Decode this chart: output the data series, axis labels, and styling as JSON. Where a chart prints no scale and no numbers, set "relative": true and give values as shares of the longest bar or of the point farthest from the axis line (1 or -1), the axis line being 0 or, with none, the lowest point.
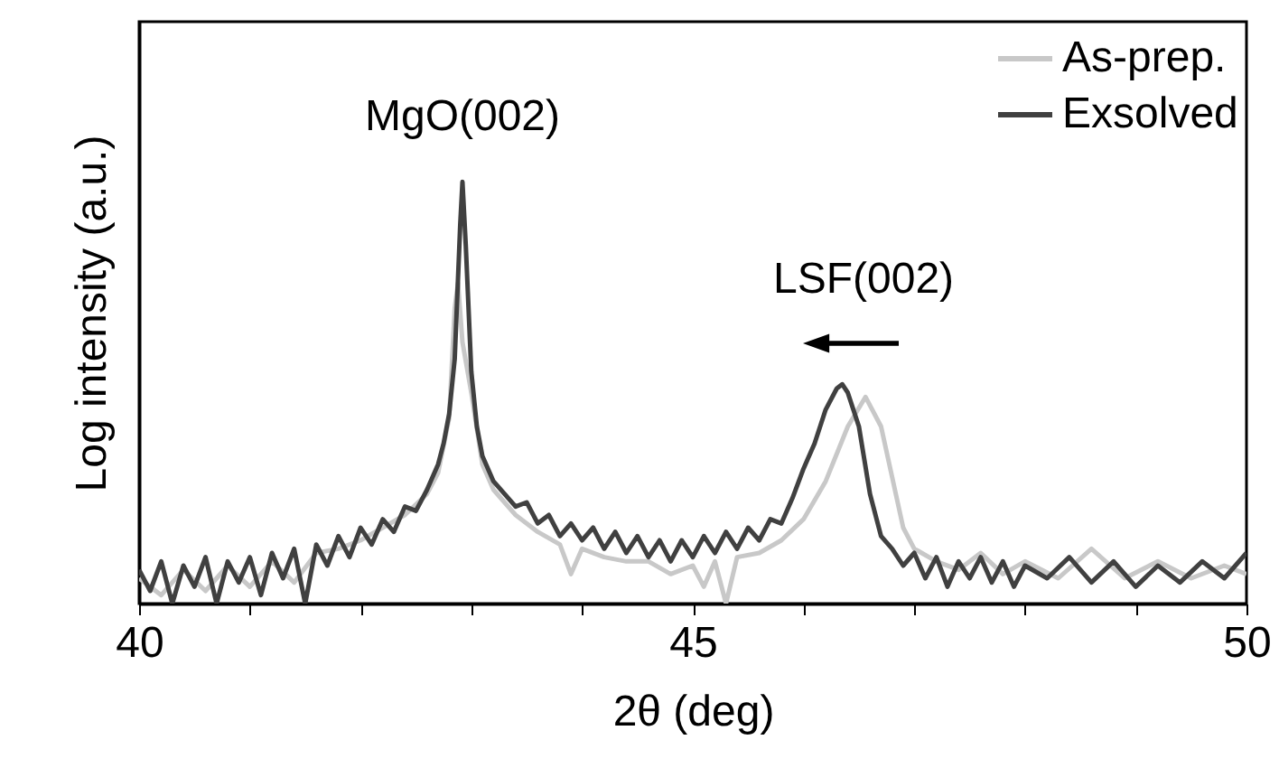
{
  "chart_data": {
    "type": "line",
    "xlabel": "2θ (deg)",
    "ylabel": "Log intensity (a.u.)",
    "relative": true,
    "legend": "top right",
    "xlim": [
      40,
      50
    ],
    "xticks": [
      40,
      {
        "value": 41,
        "label": null
      },
      {
        "value": 42,
        "label": null
      },
      {
        "value": 43,
        "label": null
      },
      {
        "value": 44,
        "label": null
      },
      45,
      {
        "value": 46,
        "label": null
      },
      {
        "value": 47,
        "label": null
      },
      {
        "value": 48,
        "label": null
      },
      {
        "value": 49,
        "label": null
      },
      50
    ],
    "annotations": [
      "MgO(002)",
      "LSF(002)"
    ],
    "series": [
      {
        "name": "As-prep.",
        "color": "#c8c8c8",
        "x": [
          40.0,
          40.2,
          40.4,
          40.6,
          40.8,
          41.0,
          41.2,
          41.4,
          41.6,
          41.8,
          42.0,
          42.2,
          42.4,
          42.6,
          42.7,
          42.8,
          42.85,
          42.88,
          42.92,
          43.0,
          43.1,
          43.2,
          43.4,
          43.6,
          43.8,
          43.9,
          44.0,
          44.2,
          44.4,
          44.6,
          44.8,
          45.0,
          45.1,
          45.2,
          45.3,
          45.4,
          45.6,
          45.8,
          46.0,
          46.2,
          46.4,
          46.56,
          46.7,
          46.8,
          46.9,
          47.0,
          47.2,
          47.4,
          47.6,
          47.8,
          48.0,
          48.3,
          48.6,
          48.9,
          49.2,
          49.5,
          49.8,
          50.0
        ],
        "values": [
          0.06,
          0.02,
          0.08,
          0.03,
          0.09,
          0.04,
          0.1,
          0.05,
          0.12,
          0.13,
          0.15,
          0.18,
          0.21,
          0.26,
          0.31,
          0.44,
          0.7,
          0.76,
          0.62,
          0.5,
          0.33,
          0.27,
          0.21,
          0.17,
          0.14,
          0.07,
          0.13,
          0.11,
          0.1,
          0.1,
          0.07,
          0.09,
          0.04,
          0.1,
          0.0,
          0.11,
          0.12,
          0.15,
          0.2,
          0.29,
          0.42,
          0.49,
          0.42,
          0.3,
          0.18,
          0.13,
          0.1,
          0.08,
          0.12,
          0.07,
          0.1,
          0.06,
          0.13,
          0.06,
          0.1,
          0.06,
          0.09,
          0.07
        ]
      },
      {
        "name": "Exsolved",
        "color": "#404040",
        "x": [
          40.0,
          40.1,
          40.2,
          40.3,
          40.4,
          40.5,
          40.6,
          40.7,
          40.8,
          40.9,
          41.0,
          41.1,
          41.2,
          41.3,
          41.4,
          41.5,
          41.6,
          41.7,
          41.8,
          41.9,
          42.0,
          42.1,
          42.2,
          42.3,
          42.4,
          42.5,
          42.6,
          42.7,
          42.75,
          42.8,
          42.85,
          42.9,
          42.92,
          42.95,
          43.0,
          43.05,
          43.1,
          43.2,
          43.3,
          43.4,
          43.5,
          43.6,
          43.7,
          43.8,
          43.9,
          44.0,
          44.1,
          44.2,
          44.3,
          44.4,
          44.5,
          44.6,
          44.7,
          44.8,
          44.9,
          45.0,
          45.1,
          45.2,
          45.3,
          45.4,
          45.5,
          45.6,
          45.7,
          45.8,
          45.9,
          46.0,
          46.1,
          46.2,
          46.3,
          46.35,
          46.4,
          46.5,
          46.6,
          46.7,
          46.8,
          46.9,
          47.0,
          47.1,
          47.2,
          47.3,
          47.4,
          47.5,
          47.6,
          47.7,
          47.8,
          47.9,
          48.0,
          48.2,
          48.4,
          48.6,
          48.8,
          49.0,
          49.2,
          49.4,
          49.6,
          49.8,
          50.0
        ],
        "values": [
          0.08,
          0.03,
          0.1,
          0.0,
          0.09,
          0.04,
          0.11,
          0.0,
          0.1,
          0.05,
          0.11,
          0.02,
          0.12,
          0.06,
          0.13,
          0.0,
          0.14,
          0.09,
          0.16,
          0.11,
          0.18,
          0.14,
          0.2,
          0.17,
          0.23,
          0.22,
          0.27,
          0.33,
          0.38,
          0.45,
          0.58,
          0.9,
          1.0,
          0.85,
          0.55,
          0.42,
          0.35,
          0.29,
          0.26,
          0.23,
          0.24,
          0.19,
          0.21,
          0.16,
          0.19,
          0.15,
          0.18,
          0.13,
          0.17,
          0.12,
          0.16,
          0.11,
          0.15,
          0.1,
          0.15,
          0.11,
          0.16,
          0.12,
          0.17,
          0.13,
          0.18,
          0.15,
          0.2,
          0.19,
          0.25,
          0.32,
          0.38,
          0.46,
          0.51,
          0.52,
          0.5,
          0.42,
          0.26,
          0.16,
          0.13,
          0.09,
          0.12,
          0.06,
          0.11,
          0.04,
          0.1,
          0.06,
          0.11,
          0.05,
          0.1,
          0.04,
          0.09,
          0.06,
          0.11,
          0.05,
          0.1,
          0.04,
          0.09,
          0.05,
          0.1,
          0.06,
          0.12
        ]
      }
    ]
  }
}
